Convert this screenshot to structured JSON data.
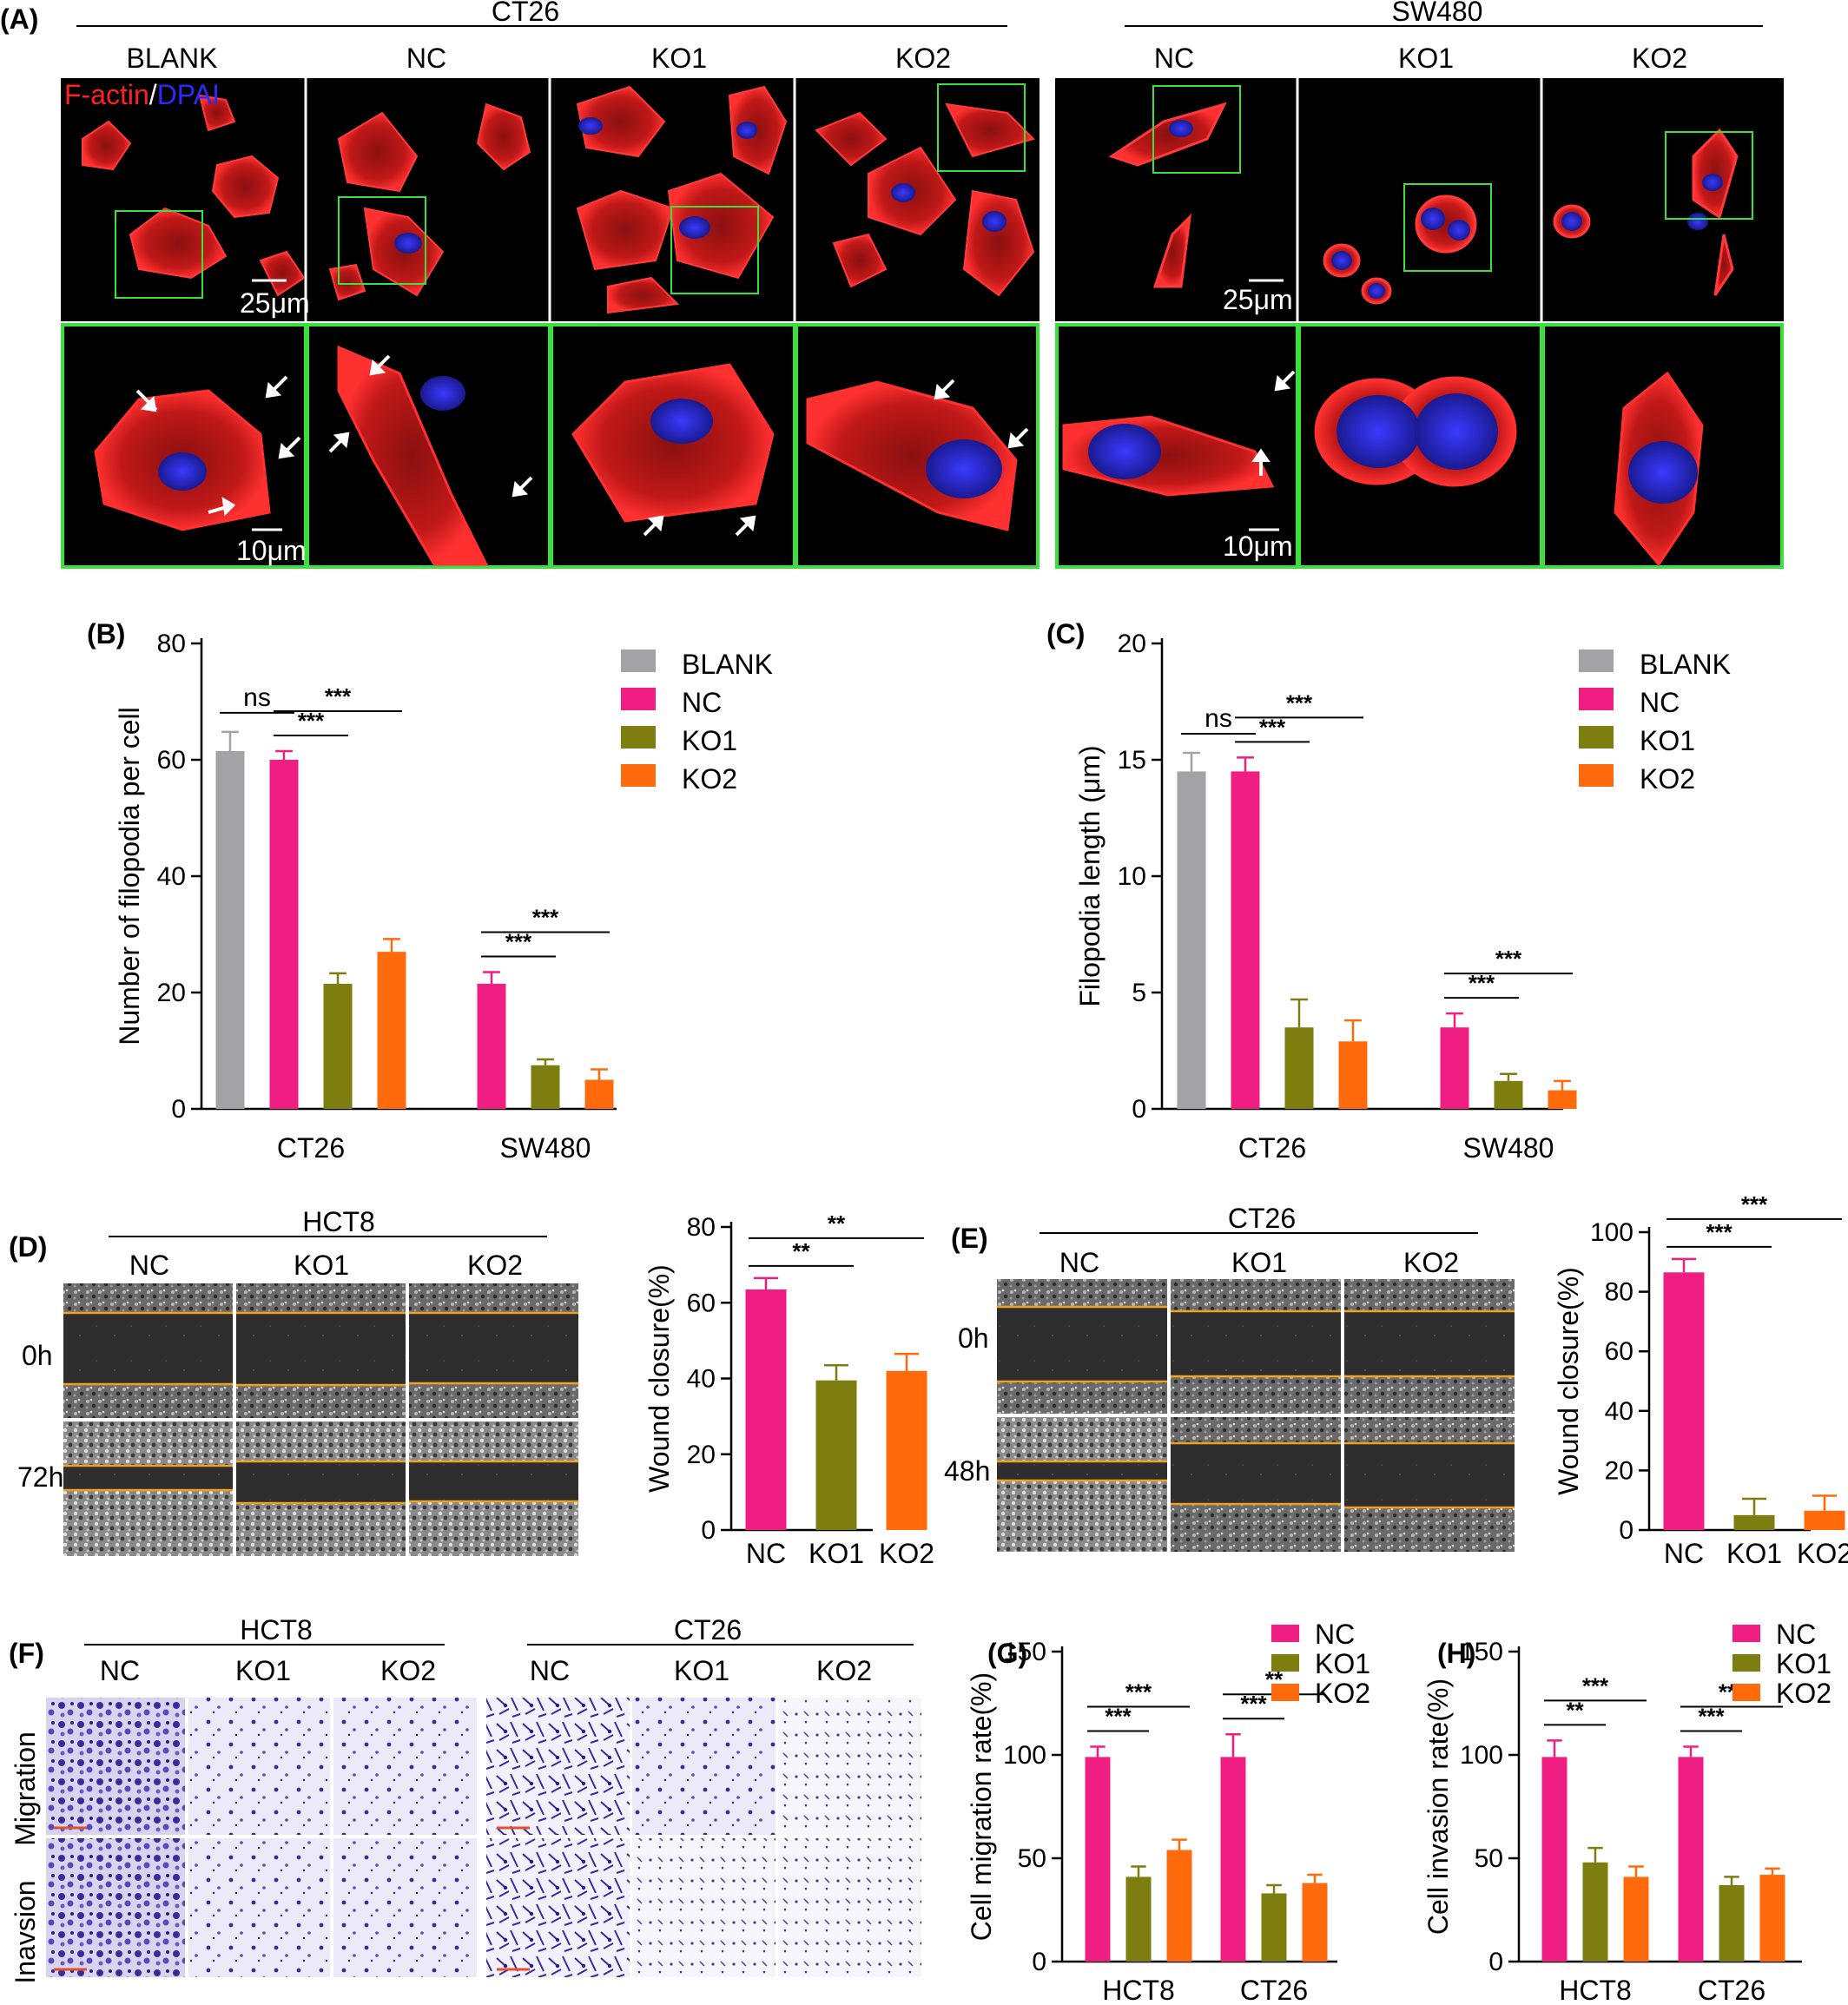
{
  "colors": {
    "BLANK": "#a3a3a7",
    "NC": "#f01e82",
    "KO1": "#7d7d10",
    "KO2": "#ff6a0d",
    "frame_green": "#3ce03c",
    "boundary_orange": "#f0a020",
    "actin_red": "#e0282c",
    "dapi_blue": "#3030e0",
    "crystal_violet": "#4a32a8"
  },
  "panelA": {
    "letter": "(A)",
    "groups": [
      {
        "name": "CT26",
        "columns": [
          "BLANK",
          "NC",
          "KO1",
          "KO2"
        ]
      },
      {
        "name": "SW480",
        "columns": [
          "NC",
          "KO1",
          "KO2"
        ]
      }
    ],
    "stain_actin": "F-actin",
    "stain_sep": "/",
    "stain_dapi": "DPAI",
    "scale_top": "25μm",
    "scale_bottom": "10μm"
  },
  "panelD": {
    "letter": "(D)",
    "group": "HCT8",
    "columns": [
      "NC",
      "KO1",
      "KO2"
    ],
    "rows": [
      "0h",
      "72h"
    ]
  },
  "panelE": {
    "letter": "(E)",
    "group": "CT26",
    "columns": [
      "NC",
      "KO1",
      "KO2"
    ],
    "rows": [
      "0h",
      "48h"
    ]
  },
  "panelF": {
    "letter": "(F)",
    "groups": [
      {
        "name": "HCT8",
        "columns": [
          "NC",
          "KO1",
          "KO2"
        ]
      },
      {
        "name": "CT26",
        "columns": [
          "NC",
          "KO1",
          "KO2"
        ]
      }
    ],
    "rows": [
      "Migration",
      "Inavsion"
    ]
  },
  "chart_data": [
    {
      "id": "B",
      "letter": "(B)",
      "type": "bar",
      "ylabel": "Number of filopodia per cell",
      "ylim": [
        0,
        80
      ],
      "yticks": [
        0,
        20,
        40,
        60,
        80
      ],
      "categories": [
        "CT26",
        "SW480"
      ],
      "legend": [
        "BLANK",
        "NC",
        "KO1",
        "KO2"
      ],
      "series": [
        {
          "name": "BLANK",
          "values": [
            61.5,
            null
          ],
          "errors": [
            3.3,
            null
          ]
        },
        {
          "name": "NC",
          "values": [
            60,
            21.5
          ],
          "errors": [
            1.5,
            2.0
          ]
        },
        {
          "name": "KO1",
          "values": [
            21.5,
            7.5
          ],
          "errors": [
            1.8,
            1.0
          ]
        },
        {
          "name": "KO2",
          "values": [
            27,
            5
          ],
          "errors": [
            2.2,
            1.8
          ]
        }
      ],
      "significance": [
        {
          "category": "CT26",
          "from": "BLANK",
          "to": "NC",
          "label": "ns"
        },
        {
          "category": "CT26",
          "from": "NC",
          "to": "KO1",
          "label": "***"
        },
        {
          "category": "CT26",
          "from": "NC",
          "to": "KO2",
          "label": "***"
        },
        {
          "category": "SW480",
          "from": "NC",
          "to": "KO1",
          "label": "***"
        },
        {
          "category": "SW480",
          "from": "NC",
          "to": "KO2",
          "label": "***"
        }
      ]
    },
    {
      "id": "C",
      "letter": "(C)",
      "type": "bar",
      "ylabel": "Filopodia length (μm)",
      "ylim": [
        0,
        20
      ],
      "yticks": [
        0,
        5,
        10,
        15,
        20
      ],
      "categories": [
        "CT26",
        "SW480"
      ],
      "legend": [
        "BLANK",
        "NC",
        "KO1",
        "KO2"
      ],
      "series": [
        {
          "name": "BLANK",
          "values": [
            14.5,
            null
          ],
          "errors": [
            0.8,
            null
          ]
        },
        {
          "name": "NC",
          "values": [
            14.5,
            3.5
          ],
          "errors": [
            0.6,
            0.6
          ]
        },
        {
          "name": "KO1",
          "values": [
            3.5,
            1.2
          ],
          "errors": [
            1.2,
            0.3
          ]
        },
        {
          "name": "KO2",
          "values": [
            2.9,
            0.8
          ],
          "errors": [
            0.9,
            0.4
          ]
        }
      ],
      "significance": [
        {
          "category": "CT26",
          "from": "BLANK",
          "to": "NC",
          "label": "ns"
        },
        {
          "category": "CT26",
          "from": "NC",
          "to": "KO1",
          "label": "***"
        },
        {
          "category": "CT26",
          "from": "NC",
          "to": "KO2",
          "label": "***"
        },
        {
          "category": "SW480",
          "from": "NC",
          "to": "KO1",
          "label": "***"
        },
        {
          "category": "SW480",
          "from": "NC",
          "to": "KO2",
          "label": "***"
        }
      ]
    },
    {
      "id": "D",
      "type": "bar",
      "ylabel": "Wound closure(%)",
      "ylim": [
        0,
        80
      ],
      "yticks": [
        0,
        20,
        40,
        60,
        80
      ],
      "categories": [
        "NC",
        "KO1",
        "KO2"
      ],
      "values": [
        63.5,
        39.5,
        42
      ],
      "errors": [
        3,
        4,
        4.5
      ],
      "significance": [
        {
          "from": "NC",
          "to": "KO1",
          "label": "**"
        },
        {
          "from": "NC",
          "to": "KO2",
          "label": "**"
        }
      ]
    },
    {
      "id": "E",
      "type": "bar",
      "ylabel": "Wound closure(%)",
      "ylim": [
        0,
        100
      ],
      "yticks": [
        0,
        20,
        40,
        60,
        80,
        100
      ],
      "categories": [
        "NC",
        "KO1",
        "KO2"
      ],
      "values": [
        86.5,
        5,
        6.5
      ],
      "errors": [
        4.5,
        5.5,
        5
      ],
      "significance": [
        {
          "from": "NC",
          "to": "KO1",
          "label": "***"
        },
        {
          "from": "NC",
          "to": "KO2",
          "label": "***"
        }
      ]
    },
    {
      "id": "G",
      "letter": "(G)",
      "type": "bar",
      "ylabel": "Cell migration rate(%)",
      "ylim": [
        0,
        150
      ],
      "yticks": [
        0,
        50,
        100,
        150
      ],
      "categories": [
        "HCT8",
        "CT26"
      ],
      "legend": [
        "NC",
        "KO1",
        "KO2"
      ],
      "series": [
        {
          "name": "NC",
          "values": [
            99,
            99
          ],
          "errors": [
            5,
            11
          ]
        },
        {
          "name": "KO1",
          "values": [
            41,
            33
          ],
          "errors": [
            5,
            4
          ]
        },
        {
          "name": "KO2",
          "values": [
            54,
            38
          ],
          "errors": [
            5,
            4
          ]
        }
      ],
      "significance": [
        {
          "category": "HCT8",
          "from": "NC",
          "to": "KO1",
          "label": "***"
        },
        {
          "category": "HCT8",
          "from": "NC",
          "to": "KO2",
          "label": "***"
        },
        {
          "category": "CT26",
          "from": "NC",
          "to": "KO1",
          "label": "***"
        },
        {
          "category": "CT26",
          "from": "NC",
          "to": "KO2",
          "label": "**"
        }
      ]
    },
    {
      "id": "H",
      "letter": "(H)",
      "type": "bar",
      "ylabel": "Cell invasion rate(%)",
      "ylim": [
        0,
        150
      ],
      "yticks": [
        0,
        50,
        100,
        150
      ],
      "categories": [
        "HCT8",
        "CT26"
      ],
      "legend": [
        "NC",
        "KO1",
        "KO2"
      ],
      "series": [
        {
          "name": "NC",
          "values": [
            99,
            99
          ],
          "errors": [
            8,
            5
          ]
        },
        {
          "name": "KO1",
          "values": [
            48,
            37
          ],
          "errors": [
            7,
            4
          ]
        },
        {
          "name": "KO2",
          "values": [
            41,
            42
          ],
          "errors": [
            5,
            3
          ]
        }
      ],
      "significance": [
        {
          "category": "HCT8",
          "from": "NC",
          "to": "KO1",
          "label": "**"
        },
        {
          "category": "HCT8",
          "from": "NC",
          "to": "KO2",
          "label": "***"
        },
        {
          "category": "CT26",
          "from": "NC",
          "to": "KO1",
          "label": "***"
        },
        {
          "category": "CT26",
          "from": "NC",
          "to": "KO2",
          "label": "***"
        }
      ]
    }
  ]
}
